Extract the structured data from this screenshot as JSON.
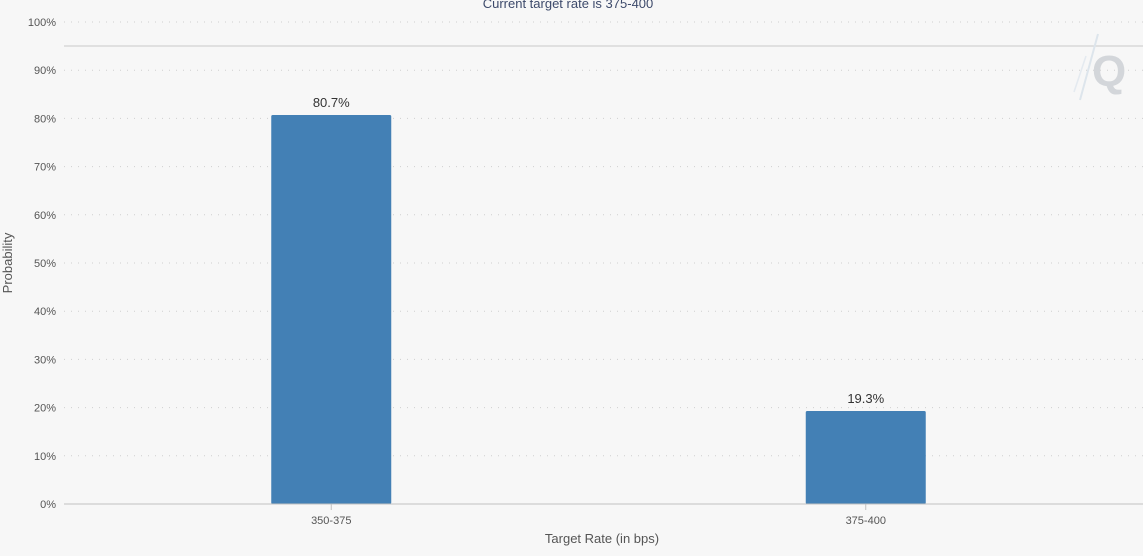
{
  "chart_data": {
    "type": "bar",
    "subtitle": "Current target rate is 375-400",
    "xlabel": "Target Rate (in bps)",
    "ylabel": "Probability",
    "categories": [
      "350-375",
      "375-400"
    ],
    "values": [
      80.7,
      19.3
    ],
    "data_labels": [
      "80.7%",
      "19.3%"
    ],
    "ylim": [
      0,
      100
    ],
    "y_ticks": [
      "0%",
      "10%",
      "20%",
      "30%",
      "40%",
      "50%",
      "60%",
      "70%",
      "80%",
      "90%",
      "100%"
    ],
    "grid": true,
    "legend": "none",
    "bar_color": "#4380b5"
  }
}
